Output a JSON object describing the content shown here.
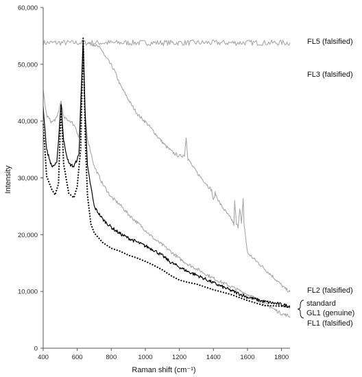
{
  "chart_data": {
    "type": "line",
    "xlabel": "Raman shift (cm⁻¹)",
    "ylabel": "Intensity",
    "xlim": [
      400,
      1850
    ],
    "ylim": [
      0,
      60000
    ],
    "x_ticks": [
      "400",
      "600",
      "800",
      "1000",
      "1200",
      "1400",
      "1600",
      "1800"
    ],
    "y_ticks": [
      "0",
      "10,000",
      "20,000",
      "30,000",
      "40,000",
      "50,000",
      "60,000"
    ],
    "grid": false,
    "legend": "none (labels placed at right end of each line)",
    "series": [
      {
        "name": "FL5 (falsified)",
        "color": "#a6a6a6",
        "style": "solid",
        "points": [
          [
            400,
            53800
          ],
          [
            1850,
            53800
          ]
        ]
      },
      {
        "name": "FL3 (falsified)",
        "color": "#a6a6a6",
        "style": "solid",
        "points": [
          [
            660,
            53700
          ],
          [
            700,
            53500
          ],
          [
            730,
            52900
          ],
          [
            750,
            52300
          ],
          [
            760,
            51500
          ],
          [
            790,
            50300
          ],
          [
            820,
            48800
          ],
          [
            850,
            46500
          ],
          [
            880,
            44900
          ],
          [
            920,
            42800
          ],
          [
            960,
            41000
          ],
          [
            1000,
            39900
          ],
          [
            1040,
            38500
          ],
          [
            1080,
            37000
          ],
          [
            1120,
            35600
          ],
          [
            1160,
            34500
          ],
          [
            1200,
            33800
          ],
          [
            1230,
            34000
          ],
          [
            1240,
            37200
          ],
          [
            1250,
            33400
          ],
          [
            1280,
            31900
          ],
          [
            1320,
            30300
          ],
          [
            1360,
            28900
          ],
          [
            1390,
            27800
          ],
          [
            1400,
            25900
          ],
          [
            1410,
            27300
          ],
          [
            1440,
            25400
          ],
          [
            1480,
            23700
          ],
          [
            1510,
            22500
          ],
          [
            1520,
            21800
          ],
          [
            1525,
            25800
          ],
          [
            1535,
            21800
          ],
          [
            1545,
            21400
          ],
          [
            1555,
            24800
          ],
          [
            1565,
            21900
          ],
          [
            1575,
            26200
          ],
          [
            1580,
            21900
          ],
          [
            1600,
            16800
          ],
          [
            1650,
            15400
          ],
          [
            1700,
            14000
          ],
          [
            1760,
            12300
          ],
          [
            1820,
            10500
          ],
          [
            1850,
            9900
          ]
        ]
      },
      {
        "name": "FL2 (falsified)",
        "color": "#a6a6a6",
        "style": "solid",
        "points": [
          [
            400,
            45300
          ],
          [
            420,
            41000
          ],
          [
            450,
            39800
          ],
          [
            480,
            40500
          ],
          [
            505,
            43600
          ],
          [
            520,
            40600
          ],
          [
            560,
            40000
          ],
          [
            590,
            39000
          ],
          [
            610,
            37000
          ],
          [
            635,
            54200
          ],
          [
            645,
            42000
          ],
          [
            660,
            37000
          ],
          [
            700,
            32000
          ],
          [
            750,
            28900
          ],
          [
            800,
            26600
          ],
          [
            850,
            25300
          ],
          [
            900,
            23600
          ],
          [
            950,
            22200
          ],
          [
            1000,
            20800
          ],
          [
            1050,
            19300
          ],
          [
            1100,
            18200
          ],
          [
            1150,
            17000
          ],
          [
            1200,
            15800
          ],
          [
            1250,
            14800
          ],
          [
            1300,
            14000
          ],
          [
            1400,
            12300
          ],
          [
            1500,
            10900
          ],
          [
            1600,
            9500
          ],
          [
            1700,
            7900
          ],
          [
            1800,
            6100
          ],
          [
            1850,
            5600
          ]
        ]
      },
      {
        "name": "standard",
        "color": "#000000",
        "style": "dotted",
        "points": [
          [
            400,
            39500
          ],
          [
            420,
            30300
          ],
          [
            450,
            28000
          ],
          [
            470,
            27000
          ],
          [
            490,
            29000
          ],
          [
            505,
            42900
          ],
          [
            520,
            32500
          ],
          [
            550,
            27300
          ],
          [
            580,
            26500
          ],
          [
            600,
            28500
          ],
          [
            620,
            35000
          ],
          [
            635,
            54600
          ],
          [
            648,
            36000
          ],
          [
            660,
            27000
          ],
          [
            680,
            21900
          ],
          [
            700,
            20300
          ],
          [
            750,
            18600
          ],
          [
            800,
            17600
          ],
          [
            850,
            17100
          ],
          [
            900,
            16400
          ],
          [
            950,
            15900
          ],
          [
            1000,
            15300
          ],
          [
            1050,
            14600
          ],
          [
            1100,
            13800
          ],
          [
            1150,
            12800
          ],
          [
            1200,
            12000
          ],
          [
            1250,
            11600
          ],
          [
            1300,
            11300
          ],
          [
            1400,
            10300
          ],
          [
            1500,
            9500
          ],
          [
            1600,
            8400
          ],
          [
            1700,
            7500
          ],
          [
            1800,
            7400
          ],
          [
            1850,
            7200
          ]
        ]
      },
      {
        "name": "GL1 (genuine)",
        "color": "#000000",
        "style": "solid",
        "points": [
          [
            400,
            42500
          ],
          [
            420,
            35000
          ],
          [
            450,
            32000
          ],
          [
            480,
            32500
          ],
          [
            505,
            43200
          ],
          [
            520,
            36500
          ],
          [
            550,
            32500
          ],
          [
            580,
            32000
          ],
          [
            610,
            34000
          ],
          [
            635,
            54100
          ],
          [
            648,
            40000
          ],
          [
            660,
            32000
          ],
          [
            700,
            24900
          ],
          [
            750,
            22700
          ],
          [
            800,
            21300
          ],
          [
            850,
            20200
          ],
          [
            900,
            19400
          ],
          [
            950,
            18700
          ],
          [
            1000,
            18000
          ],
          [
            1050,
            17300
          ],
          [
            1100,
            16300
          ],
          [
            1150,
            15100
          ],
          [
            1200,
            14300
          ],
          [
            1250,
            13500
          ],
          [
            1300,
            12900
          ],
          [
            1400,
            11500
          ],
          [
            1500,
            10200
          ],
          [
            1600,
            9000
          ],
          [
            1700,
            8200
          ],
          [
            1800,
            7700
          ],
          [
            1850,
            7400
          ]
        ]
      },
      {
        "name": "FL1 (falsified)",
        "color": "#a6a6a6",
        "style": "solid",
        "points": []
      }
    ],
    "label_bracket": [
      "standard",
      "GL1 (genuine)"
    ]
  }
}
